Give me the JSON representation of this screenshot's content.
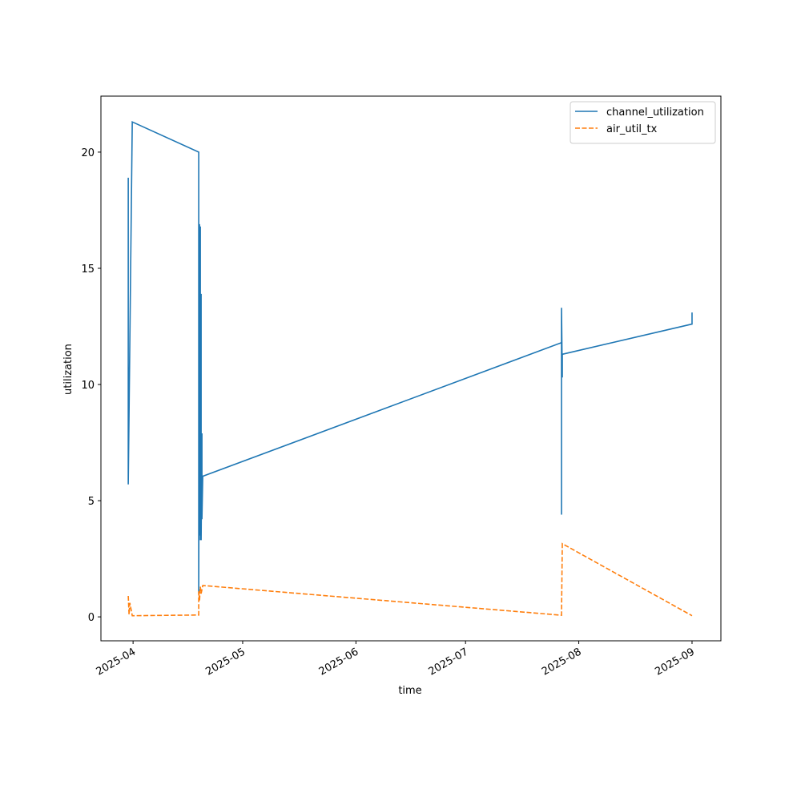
{
  "chart_data": {
    "type": "line",
    "x_label": "time",
    "y_label": "utilization",
    "xlim": [
      20170.2,
      20339.9
    ],
    "ylim": [
      -1.03,
      22.41
    ],
    "xticks": [
      {
        "value": 20179,
        "label": "2025-04"
      },
      {
        "value": 20209,
        "label": "2025-05"
      },
      {
        "value": 20240,
        "label": "2025-06"
      },
      {
        "value": 20270,
        "label": "2025-07"
      },
      {
        "value": 20301,
        "label": "2025-08"
      },
      {
        "value": 20332,
        "label": "2025-09"
      }
    ],
    "yticks": [
      0,
      5,
      10,
      15,
      20
    ],
    "legend": "upper right",
    "series": [
      {
        "name": "channel_utilization",
        "color": "#1f77b4",
        "dash": "solid",
        "x": [
          20177.68,
          20177.68,
          20178.78,
          20196.97,
          20196.97,
          20197.19,
          20197.19,
          20197.41,
          20197.41,
          20197.63,
          20197.63,
          20197.85,
          20197.85,
          20198.07,
          20296.27,
          20296.27,
          20296.27,
          20296.49,
          20296.49,
          20332.0,
          20332.0
        ],
        "values": [
          18.9,
          5.7,
          21.3,
          20.0,
          1.0,
          16.9,
          3.5,
          16.8,
          3.3,
          13.9,
          3.3,
          7.9,
          4.2,
          6.05,
          11.8,
          4.4,
          13.3,
          10.3,
          11.3,
          12.6,
          13.1
        ]
      },
      {
        "name": "air_util_tx",
        "color": "#ff7f0e",
        "dash": "dashed",
        "x": [
          20177.68,
          20177.9,
          20178.12,
          20178.78,
          20196.97,
          20196.97,
          20197.19,
          20197.41,
          20197.63,
          20198.07,
          20296.27,
          20296.49,
          20332.0
        ],
        "values": [
          0.9,
          0.1,
          0.6,
          0.05,
          0.08,
          1.1,
          0.7,
          1.3,
          1.0,
          1.35,
          0.07,
          3.15,
          0.05
        ]
      }
    ]
  }
}
